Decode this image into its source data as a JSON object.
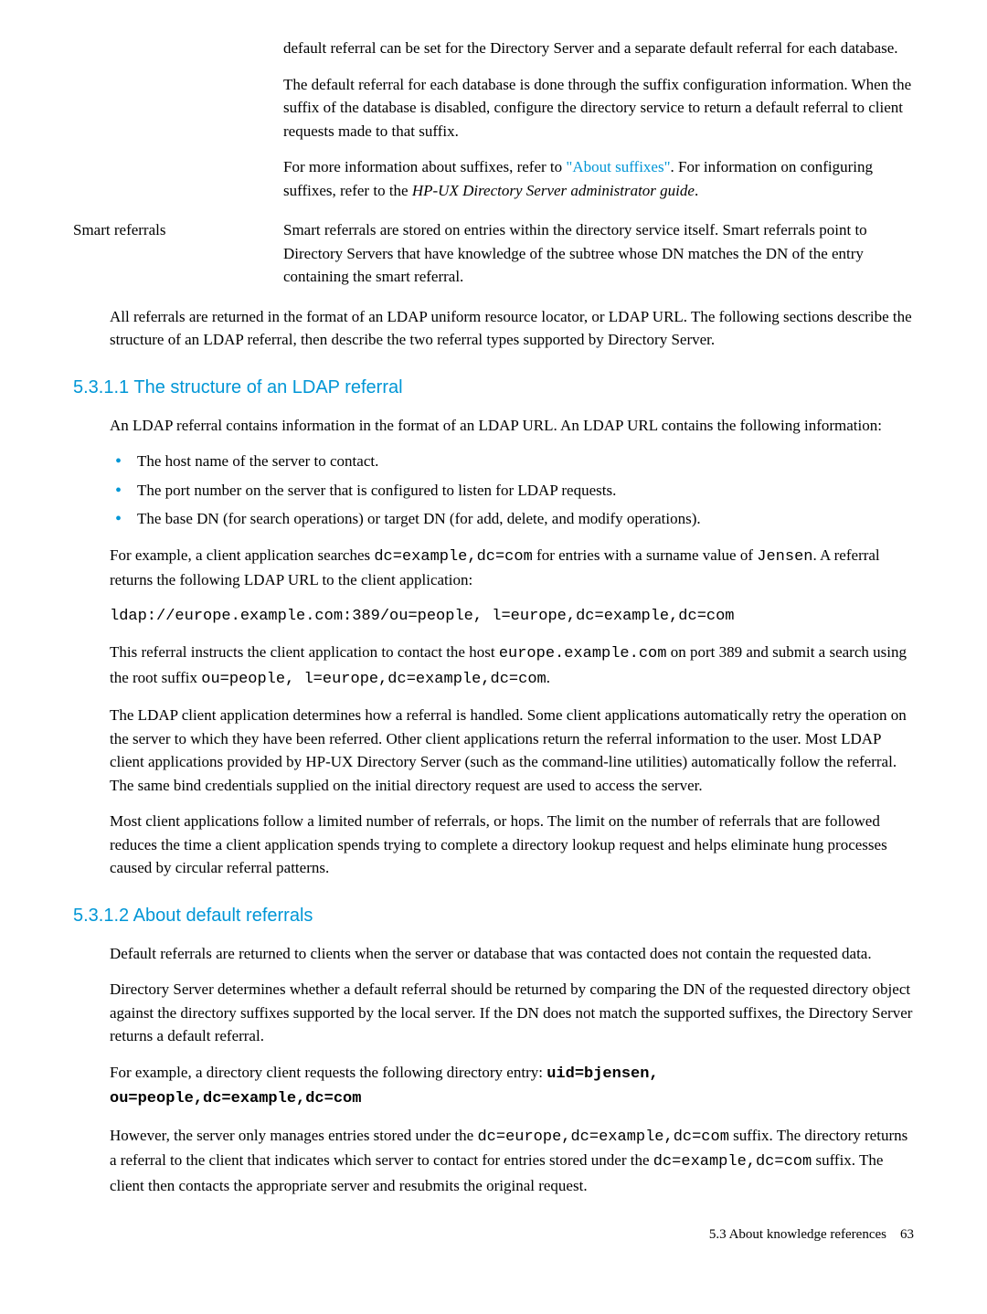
{
  "intro": {
    "para1": "default referral can be set for the Directory Server and a separate default referral for each database.",
    "para2_pre": "The default referral for each database is done through the suffix configuration information. When the suffix of the database is disabled, configure the directory service to return a default referral to client requests made to that suffix.",
    "para3_pre": "For more information about suffixes, refer to ",
    "para3_link": "\"About suffixes\"",
    "para3_mid": ". For information on configuring suffixes, refer to the ",
    "para3_italic": "HP-UX Directory Server administrator guide",
    "para3_end": "."
  },
  "smart": {
    "label": "Smart referrals",
    "text": "Smart referrals are stored on entries within the directory service itself. Smart referrals point to Directory Servers that have knowledge of the subtree whose DN matches the DN of the entry containing the smart referral."
  },
  "intro_final": "All referrals are returned in the format of an LDAP uniform resource locator, or LDAP URL. The following sections describe the structure of an LDAP referral, then describe the two referral types supported by Directory Server.",
  "section1": {
    "heading": "5.3.1.1 The structure of an LDAP referral",
    "para1": "An LDAP referral contains information in the format of an LDAP URL. An LDAP URL contains the following information:",
    "bullets": [
      "The host name of the server to contact.",
      "The port number on the server that is configured to listen for LDAP requests.",
      "The base DN (for search operations) or target DN (for add, delete, and modify operations)."
    ],
    "para2_pre": "For example, a client application searches ",
    "para2_code1": "dc=example,dc=com",
    "para2_mid": " for entries with a surname value of ",
    "para2_code2": "Jensen",
    "para2_end": ". A referral returns the following LDAP URL to the client application:",
    "code_line": "ldap://europe.example.com:389/ou=people, l=europe,dc=example,dc=com",
    "para3_pre": "This referral instructs the client application to contact the host ",
    "para3_code1": "europe.example.com",
    "para3_mid": " on port 389 and submit a search using the root suffix ",
    "para3_code2": "ou=people, l=europe,dc=example,dc=com",
    "para3_end": ".",
    "para4": "The LDAP client application determines how a referral is handled. Some client applications automatically retry the operation on the server to which they have been referred. Other client applications return the referral information to the user. Most LDAP client applications provided by HP-UX Directory Server (such as the command-line utilities) automatically follow the referral. The same bind credentials supplied on the initial directory request are used to access the server.",
    "para5": "Most client applications follow a limited number of referrals, or hops. The limit on the number of referrals that are followed reduces the time a client application spends trying to complete a directory lookup request and helps eliminate hung processes caused by circular referral patterns."
  },
  "section2": {
    "heading": "5.3.1.2 About default referrals",
    "para1": "Default referrals are returned to clients when the server or database that was contacted does not contain the requested data.",
    "para2": "Directory Server determines whether a default referral should be returned by comparing the DN of the requested directory object against the directory suffixes supported by the local server. If the DN does not match the supported suffixes, the Directory Server returns a default referral.",
    "para3_pre": "For example, a directory client requests the following directory entry: ",
    "para3_bold": "uid=bjensen, ou=people,dc=example,dc=com",
    "para4_pre": "However, the server only manages entries stored under the ",
    "para4_code1": "dc=europe,dc=example,dc=com",
    "para4_mid1": " suffix. The directory returns a referral to the client that indicates which server to contact for entries stored under the ",
    "para4_code2": "dc=example,dc=com",
    "para4_end": " suffix. The client then contacts the appropriate server and resubmits the original request."
  },
  "footer": {
    "text": "5.3 About knowledge references",
    "page": "63"
  }
}
